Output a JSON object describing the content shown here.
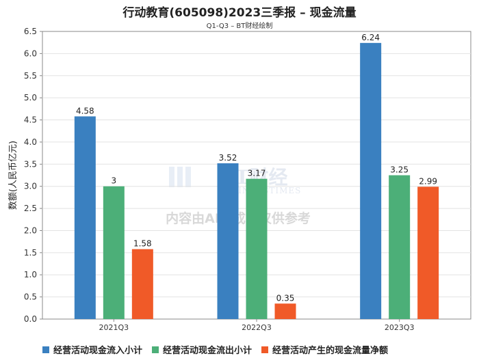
{
  "chart_data": {
    "type": "bar",
    "title": "行动教育(605098)2023三季报 – 现金流量",
    "subtitle": "Q1-Q3 – BT财经绘制",
    "ylabel": "数额(人民币亿元)",
    "xlabel": "",
    "ylim": [
      0,
      6.5
    ],
    "yticks": [
      "0.0",
      "0.5",
      "1.0",
      "1.5",
      "2.0",
      "2.5",
      "3.0",
      "3.5",
      "4.0",
      "4.5",
      "5.0",
      "5.5",
      "6.0",
      "6.5"
    ],
    "categories": [
      "2021Q3",
      "2022Q3",
      "2023Q3"
    ],
    "series": [
      {
        "name": "经营活动现金流入小计",
        "color": "#3a80c0",
        "values": [
          4.58,
          3.52,
          6.24
        ],
        "labels": [
          "4.58",
          "3.52",
          "6.24"
        ]
      },
      {
        "name": "经营活动现金流出小计",
        "color": "#4caf78",
        "values": [
          3.0,
          3.17,
          3.25
        ],
        "labels": [
          "3",
          "3.17",
          "3.25"
        ]
      },
      {
        "name": "经营活动产生的现金流量净额",
        "color": "#f05a28",
        "values": [
          1.58,
          0.35,
          2.99
        ],
        "labels": [
          "1.58",
          "0.35",
          "2.99"
        ]
      }
    ],
    "grid": true,
    "legend": "bottom"
  },
  "watermark": {
    "brand": "BT财经",
    "brand_sub": "BUSINESSTIMES",
    "notice": "内容由AI生成，仅供参考"
  }
}
